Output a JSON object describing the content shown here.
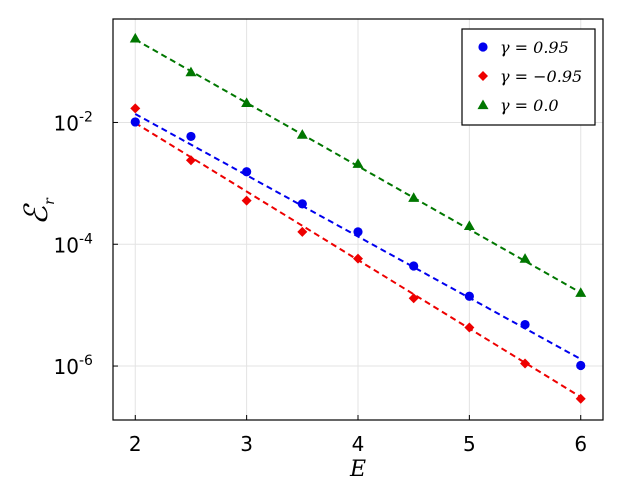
{
  "chart_data": {
    "type": "scatter",
    "title": "",
    "xlabel": "E",
    "ylabel": "ℰ",
    "ylabel_sub": "r",
    "yscale": "log",
    "xlim": [
      1.8,
      6.2
    ],
    "ylim": [
      1.3e-07,
      0.5
    ],
    "grid": true,
    "legend_position": "top-right",
    "x_ticks": [
      2,
      3,
      4,
      5,
      6
    ],
    "y_ticks": [
      {
        "value": 0.01,
        "base": "10",
        "exp": "-2"
      },
      {
        "value": 0.0001,
        "base": "10",
        "exp": "-4"
      },
      {
        "value": 1e-06,
        "base": "10",
        "exp": "-6"
      }
    ],
    "series": [
      {
        "name": "γ = 0.95",
        "color": "#0000ee",
        "marker": "circle",
        "x": [
          2,
          2.5,
          3,
          3.5,
          4,
          4.5,
          5,
          5.5,
          6
        ],
        "y": [
          0.0102,
          0.0059,
          0.00155,
          0.00046,
          0.00016,
          4.4e-05,
          1.4e-05,
          4.8e-06,
          1.02e-06
        ],
        "fit": {
          "x": [
            2,
            6
          ],
          "y": [
            0.0138,
            1.3e-06
          ]
        }
      },
      {
        "name": "γ = −0.95",
        "color": "#ee0000",
        "marker": "diamond",
        "x": [
          2,
          2.5,
          3,
          3.5,
          4,
          4.5,
          5,
          5.5,
          6
        ],
        "y": [
          0.017,
          0.0024,
          0.00052,
          0.00016,
          5.8e-05,
          1.3e-05,
          4.3e-06,
          1.1e-06,
          2.9e-07
        ],
        "fit": {
          "x": [
            2,
            6
          ],
          "y": [
            0.0098,
            3.1e-07
          ]
        }
      },
      {
        "name": "γ = 0.0",
        "color": "#007700",
        "marker": "triangle",
        "x": [
          2,
          2.5,
          3,
          3.5,
          4,
          4.5,
          5,
          5.5,
          6
        ],
        "y": [
          0.24,
          0.067,
          0.021,
          0.0063,
          0.0021,
          0.00058,
          0.0002,
          5.8e-05,
          1.6e-05
        ],
        "fit": {
          "x": [
            2,
            6
          ],
          "y": [
            0.23,
            1.6e-05
          ]
        }
      }
    ]
  }
}
